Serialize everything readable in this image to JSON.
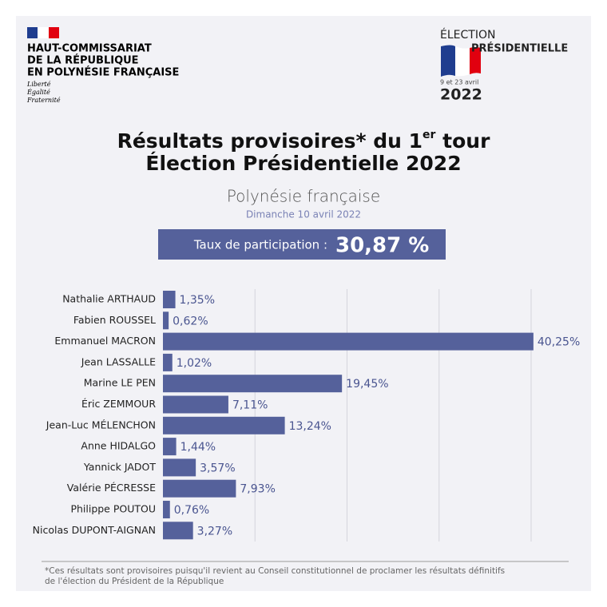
{
  "header": {
    "institution": [
      "HAUT-COMMISSARIAT",
      "DE LA RÉPUBLIQUE",
      "EN POLYNÉSIE FRANÇAISE"
    ],
    "motto": [
      "Liberté",
      "Égalité",
      "Fraternité"
    ]
  },
  "election_logo": {
    "line1": "ÉLECTION",
    "line2": "PRÉSIDENTIELLE",
    "dates": "9 et 23 avril",
    "year": "2022"
  },
  "chart_data": {
    "type": "bar",
    "orientation": "horizontal",
    "title_prefix": "Résultats provisoires* du 1",
    "title_superscript": "er",
    "title_suffix": " tour",
    "title_line2": "Élection Présidentielle 2022",
    "subtitle": "Polynésie française",
    "date": "Dimanche 10 avril 2022",
    "participation_label": "Taux de participation :",
    "participation_value": "30,87 %",
    "categories": [
      "Nathalie ARTHAUD",
      "Fabien ROUSSEL",
      "Emmanuel MACRON",
      "Jean LASSALLE",
      "Marine LE PEN",
      "Éric ZEMMOUR",
      "Jean-Luc MÉLENCHON",
      "Anne HIDALGO",
      "Yannick JADOT",
      "Valérie PÉCRESSE",
      "Philippe POUTOU",
      "Nicolas DUPONT-AIGNAN"
    ],
    "values": [
      1.35,
      0.62,
      40.25,
      1.02,
      19.45,
      7.11,
      13.24,
      1.44,
      3.57,
      7.93,
      0.76,
      3.27
    ],
    "value_labels": [
      "1,35%",
      "0,62%",
      "40,25%",
      "1,02%",
      "19,45%",
      "7,11%",
      "13,24%",
      "1,44%",
      "3,57%",
      "7,93%",
      "0,76%",
      "3,27%"
    ],
    "color": "#55619b",
    "xlim": [
      0,
      40
    ],
    "xgrid": [
      10,
      20,
      30,
      40
    ],
    "grid": true,
    "footnote": [
      "*Ces résultats sont provisoires puisqu'il revient au Conseil constitutionnel de proclamer les résultats définitifs",
      "de l'élection du Président de la République"
    ]
  }
}
